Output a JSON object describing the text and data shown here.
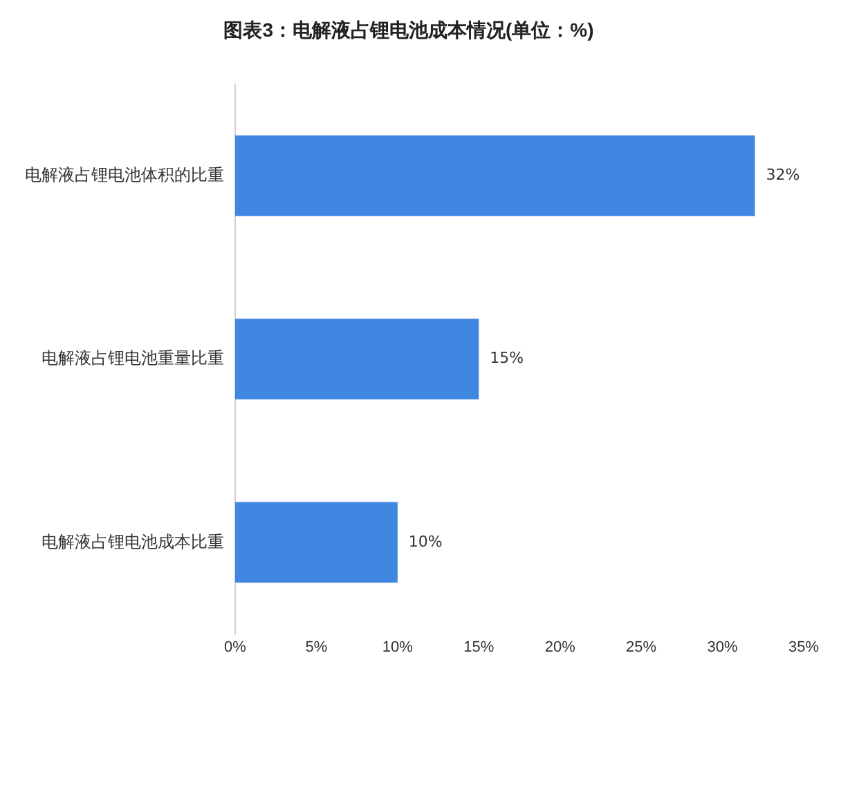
{
  "chart_data": {
    "type": "bar",
    "orientation": "horizontal",
    "title": "图表3：电解液占锂电池成本情况(单位：%)",
    "categories": [
      "电解液占锂电池体积的比重",
      "电解液占锂电池重量比重",
      "电解液占锂电池成本比重"
    ],
    "values": [
      32,
      15,
      10
    ],
    "color": "#3f87e0",
    "value_labels": [
      "32%",
      "15%",
      "10%"
    ],
    "xlim": [
      0,
      35
    ],
    "xticks": [
      {
        "value": 0,
        "label": "0%"
      },
      {
        "value": 5,
        "label": "5%"
      },
      {
        "value": 10,
        "label": "10%"
      },
      {
        "value": 15,
        "label": "15%"
      },
      {
        "value": 20,
        "label": "20%"
      },
      {
        "value": 25,
        "label": "25%"
      },
      {
        "value": 30,
        "label": "30%"
      },
      {
        "value": 35,
        "label": "35%"
      }
    ],
    "grid": false,
    "legend": false
  }
}
